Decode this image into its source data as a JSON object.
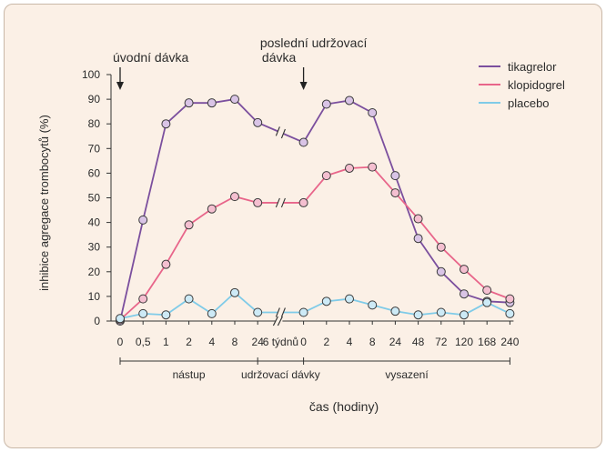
{
  "colors": {
    "background": "#fbf0e6",
    "border": "#c9b8a8",
    "axis": "#333333"
  },
  "chart_data": {
    "type": "line",
    "ylabel": "inhibice agregace trombocytů (%)",
    "xlabel": "čas (hodiny)",
    "ylim": [
      0,
      100
    ],
    "yticks": [
      0,
      10,
      20,
      30,
      40,
      50,
      60,
      70,
      80,
      90,
      100
    ],
    "ytick_labels": [
      "0",
      "10",
      "20",
      "30",
      "40",
      "50",
      "60",
      "70",
      "80",
      "90",
      "100"
    ],
    "categories": [
      "0",
      "0,5",
      "1",
      "2",
      "4",
      "8",
      "24",
      "6 týdnů",
      "0",
      "2",
      "4",
      "8",
      "24",
      "48",
      "72",
      "120",
      "168",
      "240"
    ],
    "phases": [
      {
        "label": "nástup",
        "from": 0,
        "to": 6
      },
      {
        "label": "udržovací dávky",
        "from": 6,
        "to": 8
      },
      {
        "label": "vysazení",
        "from": 8,
        "to": 17
      }
    ],
    "annotations": [
      {
        "text": [
          "úvodní dávka"
        ],
        "category_index": 0
      },
      {
        "text": [
          "poslední udržovací",
          "dávka"
        ],
        "category_index": 8
      }
    ],
    "axis_break_category_index": 7,
    "grid": false,
    "legend_position": "top-right",
    "series": [
      {
        "name": "tikagrelor",
        "color": "#7b4f9e",
        "marker_fill": "#d9c4e6",
        "values": [
          0,
          41,
          80,
          88.5,
          88.5,
          90,
          80.5,
          null,
          72.5,
          88,
          89.5,
          84.5,
          59,
          33.5,
          20,
          11,
          8,
          7.5
        ]
      },
      {
        "name": "klopidogrel",
        "color": "#e8658a",
        "marker_fill": "#f4bfd0",
        "values": [
          0.5,
          9,
          23,
          39,
          45.5,
          50.5,
          48,
          null,
          48,
          59,
          62,
          62.5,
          52,
          41.5,
          30,
          21,
          12.5,
          9
        ]
      },
      {
        "name": "placebo",
        "color": "#7fcbe8",
        "marker_fill": "#cdeaf6",
        "values": [
          1,
          3,
          2.5,
          9,
          3,
          11.5,
          3.5,
          null,
          3.5,
          8,
          9,
          6.5,
          4,
          2.5,
          3.5,
          2.5,
          7.5,
          3
        ]
      }
    ]
  }
}
